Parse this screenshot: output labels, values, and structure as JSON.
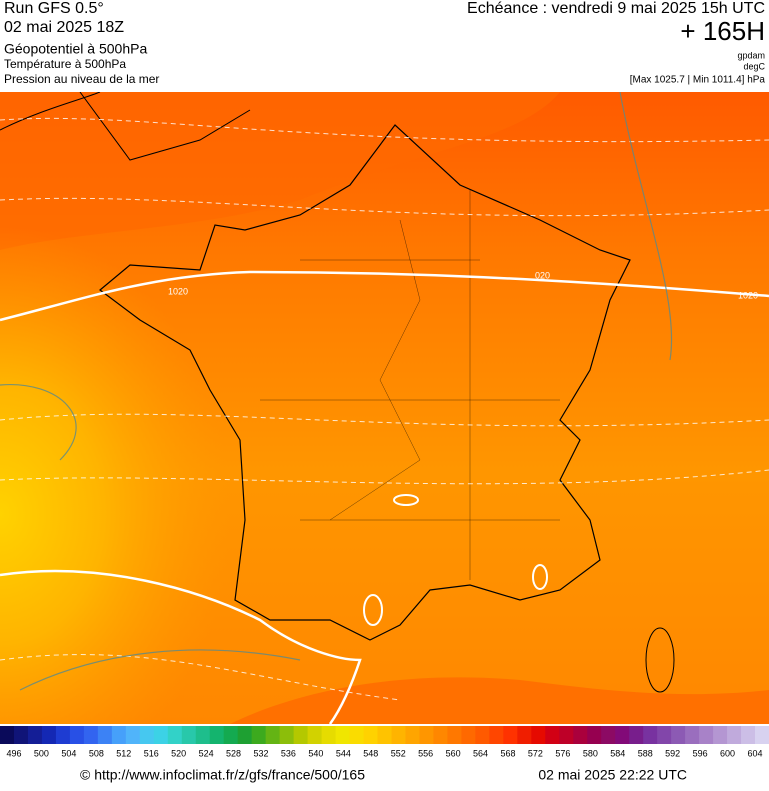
{
  "header": {
    "run": "Run GFS 0.5°",
    "date": "02 mai 2025 18Z",
    "layers": [
      "Géopotentiel à 500hPa",
      "Température à 500hPa",
      "Pression au niveau de la mer"
    ],
    "echeance": "Echéance : vendredi 9 mai 2025 15h UTC",
    "horizon": "+ 165H",
    "units": [
      "gpdam",
      "degC"
    ],
    "range": "[Max 1025.7 | Min 1011.4] hPa"
  },
  "map": {
    "contour_labels": [
      "1020",
      "020",
      "1020"
    ]
  },
  "colorbar": {
    "colors": [
      "#0a0a5a",
      "#101478",
      "#141e96",
      "#1428b4",
      "#1e3cd2",
      "#2850e6",
      "#3264f0",
      "#3c82f5",
      "#46a0fa",
      "#50b4fa",
      "#46c8f0",
      "#3cd2e6",
      "#32d2c8",
      "#28c8aa",
      "#1ebe8c",
      "#14b46e",
      "#14aa50",
      "#1ea032",
      "#3caa1e",
      "#64b414",
      "#8cbe0a",
      "#b4c800",
      "#d2d200",
      "#e6dc00",
      "#f0e600",
      "#fadc00",
      "#ffd200",
      "#ffc300",
      "#ffb400",
      "#ffa500",
      "#ff9600",
      "#ff8700",
      "#ff7800",
      "#ff6900",
      "#ff5a00",
      "#ff4600",
      "#ff3200",
      "#f01e00",
      "#e60a00",
      "#d20014",
      "#be0028",
      "#aa003c",
      "#960050",
      "#8c0a64",
      "#820a78",
      "#781e8c",
      "#7832a0",
      "#8246aa",
      "#8c5ab4",
      "#9a6ebe",
      "#a882c8",
      "#b496d2",
      "#c0aadc",
      "#ccbee6",
      "#d8d2f0"
    ],
    "labels": [
      496,
      500,
      504,
      508,
      512,
      516,
      520,
      524,
      528,
      532,
      536,
      540,
      544,
      548,
      552,
      556,
      560,
      564,
      568,
      572,
      576,
      580,
      584,
      588,
      592,
      596,
      600,
      604
    ]
  },
  "footer": {
    "source": "© http://www.infoclimat.fr/z/gfs/france/500/165",
    "timestamp": "02 mai 2025 22:22 UTC"
  }
}
